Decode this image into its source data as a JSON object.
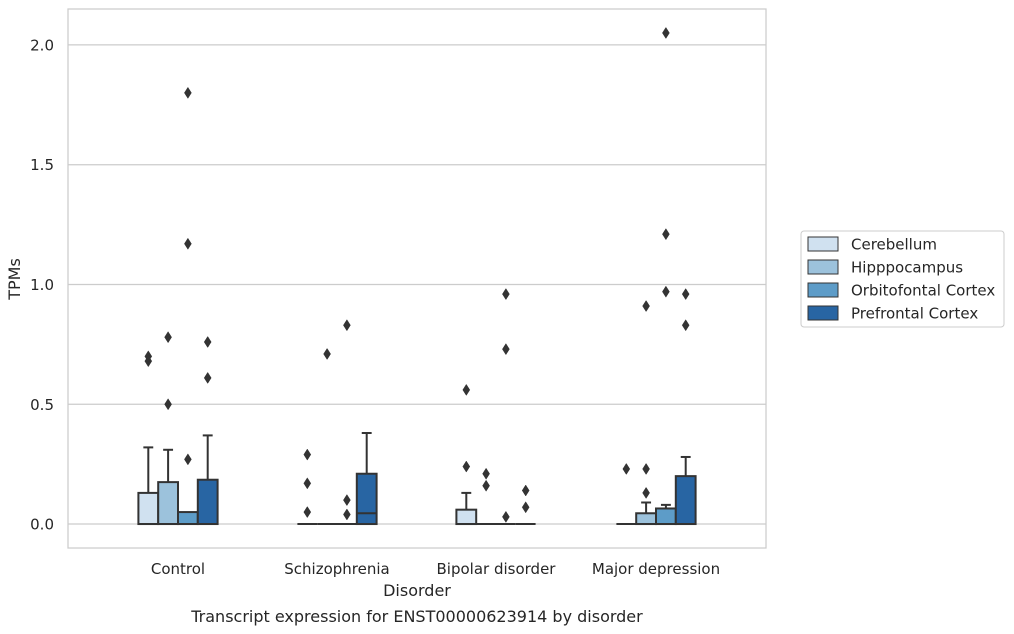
{
  "chart_data": {
    "type": "boxplot",
    "title": "Transcript expression for ENST00000623914 by disorder",
    "xlabel": "Disorder",
    "ylabel": "TPMs",
    "ylim": [
      -0.1,
      2.15
    ],
    "yticks": [
      "0.0",
      "0.5",
      "1.0",
      "1.5",
      "2.0"
    ],
    "grid": true,
    "legend_position": "right",
    "categories": [
      "Control",
      "Schizophrenia",
      "Bipolar disorder",
      "Major depression"
    ],
    "series": [
      {
        "name": "Cerebellum",
        "color": "#d0e1f0",
        "boxes": [
          {
            "q1": 0,
            "median": 0,
            "q3": 0.13,
            "whisker_low": 0,
            "whisker_high": 0.32,
            "outliers": [
              0.68,
              0.7
            ]
          },
          {
            "q1": 0,
            "median": 0,
            "q3": 0,
            "whisker_low": 0,
            "whisker_high": 0,
            "outliers": [
              0.05,
              0.17,
              0.29
            ]
          },
          {
            "q1": 0,
            "median": 0,
            "q3": 0.06,
            "whisker_low": 0,
            "whisker_high": 0.13,
            "outliers": [
              0.24,
              0.56
            ]
          },
          {
            "q1": 0,
            "median": 0,
            "q3": 0,
            "whisker_low": 0,
            "whisker_high": 0,
            "outliers": [
              0.23
            ]
          }
        ]
      },
      {
        "name": "Hipppocampus",
        "color": "#9cc2dc",
        "boxes": [
          {
            "q1": 0,
            "median": 0,
            "q3": 0.175,
            "whisker_low": 0,
            "whisker_high": 0.31,
            "outliers": [
              0.5,
              0.78
            ]
          },
          {
            "q1": 0,
            "median": 0,
            "q3": 0,
            "whisker_low": 0,
            "whisker_high": 0,
            "outliers": [
              0.71
            ]
          },
          {
            "q1": 0,
            "median": 0,
            "q3": 0,
            "whisker_low": 0,
            "whisker_high": 0,
            "outliers": [
              0.16,
              0.21
            ]
          },
          {
            "q1": 0,
            "median": 0,
            "q3": 0.045,
            "whisker_low": 0,
            "whisker_high": 0.09,
            "outliers": [
              0.13,
              0.23,
              0.91
            ]
          }
        ]
      },
      {
        "name": "Orbitofontal Cortex",
        "color": "#5d9cc8",
        "boxes": [
          {
            "q1": 0,
            "median": 0,
            "q3": 0.05,
            "whisker_low": 0,
            "whisker_high": 0.05,
            "outliers": [
              0.27,
              1.17,
              1.8
            ]
          },
          {
            "q1": 0,
            "median": 0,
            "q3": 0,
            "whisker_low": 0,
            "whisker_high": 0,
            "outliers": [
              0.04,
              0.1,
              0.83
            ]
          },
          {
            "q1": 0,
            "median": 0,
            "q3": 0,
            "whisker_low": 0,
            "whisker_high": 0,
            "outliers": [
              0.03,
              0.73,
              0.96
            ]
          },
          {
            "q1": 0,
            "median": 0,
            "q3": 0.065,
            "whisker_low": 0,
            "whisker_high": 0.08,
            "outliers": [
              0.97,
              1.21,
              2.05
            ]
          }
        ]
      },
      {
        "name": "Prefrontal Cortex",
        "color": "#2865a3",
        "boxes": [
          {
            "q1": 0,
            "median": 0,
            "q3": 0.185,
            "whisker_low": 0,
            "whisker_high": 0.37,
            "outliers": [
              0.61,
              0.76
            ]
          },
          {
            "q1": 0,
            "median": 0.045,
            "q3": 0.21,
            "whisker_low": 0,
            "whisker_high": 0.38,
            "outliers": []
          },
          {
            "q1": 0,
            "median": 0,
            "q3": 0,
            "whisker_low": 0,
            "whisker_high": 0,
            "outliers": [
              0.07,
              0.14
            ]
          },
          {
            "q1": 0,
            "median": 0,
            "q3": 0.2,
            "whisker_low": 0,
            "whisker_high": 0.28,
            "outliers": [
              0.83,
              0.96
            ]
          }
        ]
      }
    ]
  }
}
